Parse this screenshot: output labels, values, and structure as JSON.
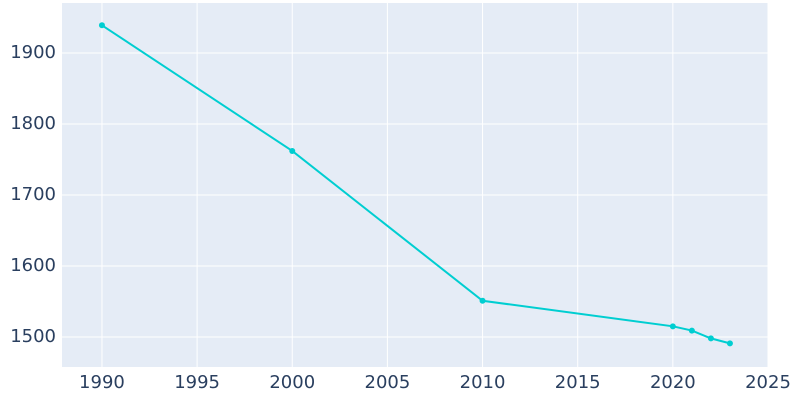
{
  "chart_data": {
    "type": "line",
    "x": [
      1990,
      2000,
      2010,
      2020,
      2021,
      2022,
      2023
    ],
    "series": [
      {
        "color": "#00ced1",
        "values": [
          1939,
          1762,
          1551,
          1515,
          1509,
          1498,
          1491
        ]
      }
    ],
    "xlim": [
      1987.9,
      2025
    ],
    "xticks": [
      1990,
      1995,
      2000,
      2005,
      2010,
      2015,
      2020,
      2025
    ],
    "ylim": [
      1457.7,
      1970.4
    ],
    "yticks": [
      1500,
      1600,
      1700,
      1800,
      1900
    ],
    "grid": true
  }
}
